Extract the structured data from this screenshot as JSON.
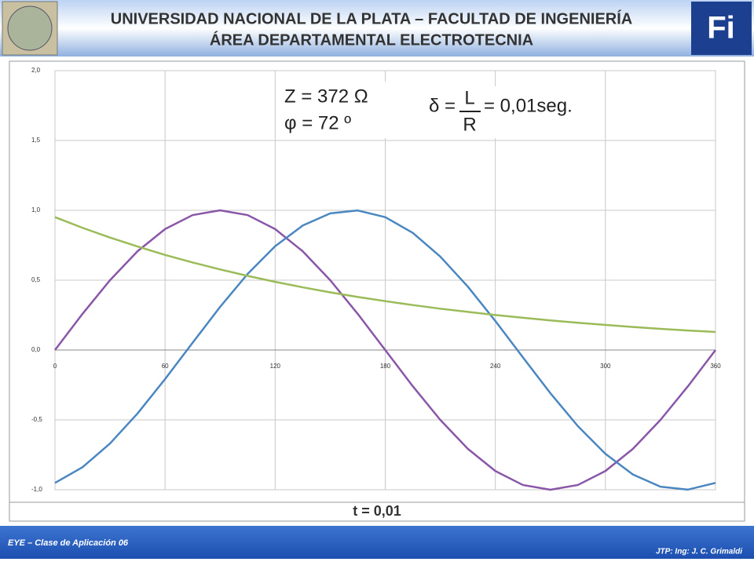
{
  "header": {
    "title_line1": "UNIVERSIDAD NACIONAL DE LA PLATA – FACULTAD DE  INGENIERÍA",
    "title_line2": "ÁREA DEPARTAMENTAL ELECTROTECNIA",
    "logo_right": "Fi"
  },
  "footer": {
    "left": "EYE – Clase de Aplicación 06",
    "right": "JTP: Ing: J. C. Grimaldi"
  },
  "chart_data": {
    "type": "line",
    "annotations": {
      "impedance": "Z =  372 Ω",
      "phase": "φ = 72 º",
      "delta_label": "δ =",
      "fraction_num": "L",
      "fraction_den": "R",
      "delta_value": "= 0,01seg.",
      "time": "t = 0,01"
    },
    "x": [
      0,
      15,
      30,
      45,
      60,
      75,
      90,
      105,
      120,
      135,
      150,
      165,
      180,
      195,
      210,
      225,
      240,
      255,
      270,
      285,
      300,
      315,
      330,
      345,
      360
    ],
    "xlim": [
      0,
      360
    ],
    "xticks": [
      0,
      60,
      120,
      180,
      240,
      300,
      360
    ],
    "ylim": [
      -1,
      2
    ],
    "yticks": [
      {
        "value": 2,
        "label": "2,0"
      },
      {
        "value": 1.5,
        "label": "1,5"
      },
      {
        "value": 1,
        "label": "1,0"
      },
      {
        "value": 0.5,
        "label": "0,5"
      },
      {
        "value": 0,
        "label": "0,0"
      },
      {
        "value": -0.5,
        "label": "-0,5"
      },
      {
        "value": -1,
        "label": "-1,0"
      }
    ],
    "grid": true,
    "series": [
      {
        "color": "#8a56a8",
        "values": [
          0,
          0.259,
          0.5,
          0.707,
          0.866,
          0.966,
          1,
          0.966,
          0.866,
          0.707,
          0.5,
          0.259,
          0,
          -0.259,
          -0.5,
          -0.707,
          -0.866,
          -0.966,
          -1,
          -0.966,
          -0.866,
          -0.707,
          -0.5,
          -0.259,
          0
        ]
      },
      {
        "color": "#4a86c0",
        "values": [
          -0.951,
          -0.839,
          -0.669,
          -0.454,
          -0.208,
          0.052,
          0.309,
          0.545,
          0.743,
          0.891,
          0.978,
          0.999,
          0.951,
          0.839,
          0.669,
          0.454,
          0.208,
          -0.052,
          -0.309,
          -0.545,
          -0.743,
          -0.891,
          -0.978,
          -0.999,
          -0.951
        ]
      },
      {
        "color": "#9bbb59",
        "values": [
          0.951,
          0.875,
          0.805,
          0.741,
          0.681,
          0.627,
          0.577,
          0.531,
          0.488,
          0.449,
          0.413,
          0.38,
          0.35,
          0.322,
          0.296,
          0.273,
          0.251,
          0.231,
          0.212,
          0.195,
          0.18,
          0.165,
          0.152,
          0.14,
          0.129
        ]
      }
    ]
  }
}
